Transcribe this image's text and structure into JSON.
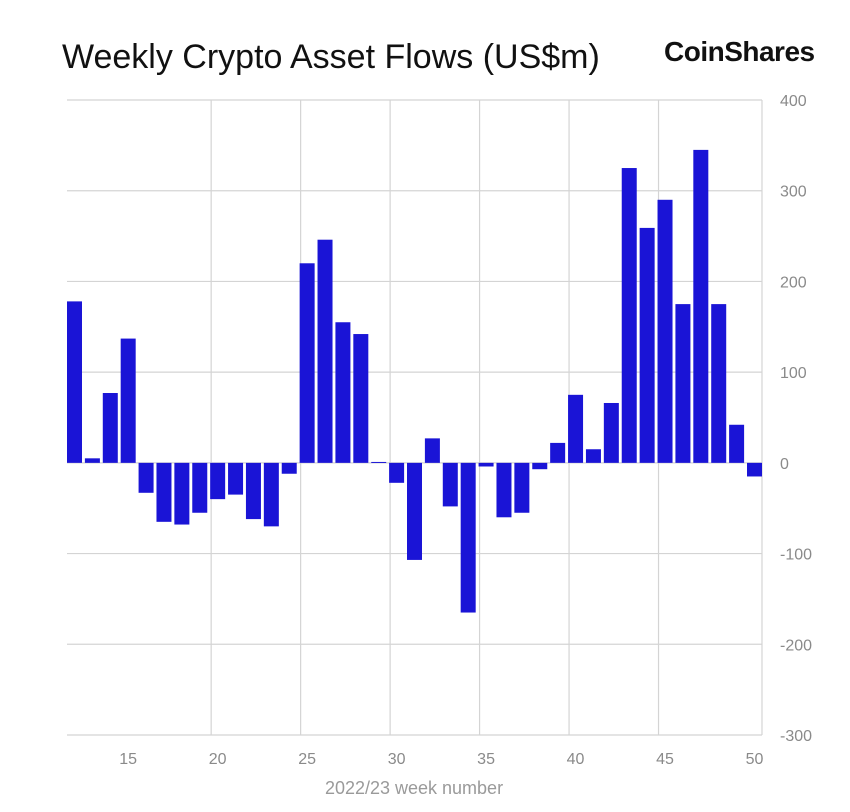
{
  "header": {
    "title": "Weekly Crypto Asset Flows (US$m)",
    "logo_text": "CoinShares"
  },
  "chart_data": {
    "type": "bar",
    "title": "Weekly Crypto Asset Flows (US$m)",
    "xlabel": "2022/23 week number",
    "ylabel": "",
    "bar_color": "#1a14d6",
    "grid": true,
    "ylim": [
      -300,
      400
    ],
    "xlim": [
      12,
      50
    ],
    "yticks": [
      400,
      300,
      200,
      100,
      0,
      -100,
      -200,
      -300
    ],
    "xticks": [
      15,
      20,
      25,
      30,
      35,
      40,
      45,
      50
    ],
    "x": [
      12,
      13,
      14,
      15,
      16,
      17,
      18,
      19,
      20,
      21,
      22,
      23,
      24,
      25,
      26,
      27,
      28,
      29,
      30,
      31,
      32,
      33,
      34,
      35,
      36,
      37,
      38,
      39,
      40,
      41,
      42,
      43,
      44,
      45,
      46,
      47,
      48,
      49,
      50
    ],
    "values": [
      178,
      5,
      77,
      137,
      -33,
      -65,
      -68,
      -55,
      -40,
      -35,
      -62,
      -70,
      -12,
      220,
      246,
      155,
      142,
      1,
      -22,
      -107,
      27,
      -48,
      -165,
      -4,
      -60,
      -55,
      -7,
      22,
      75,
      15,
      66,
      325,
      259,
      290,
      175,
      345,
      175,
      42,
      -15
    ]
  }
}
